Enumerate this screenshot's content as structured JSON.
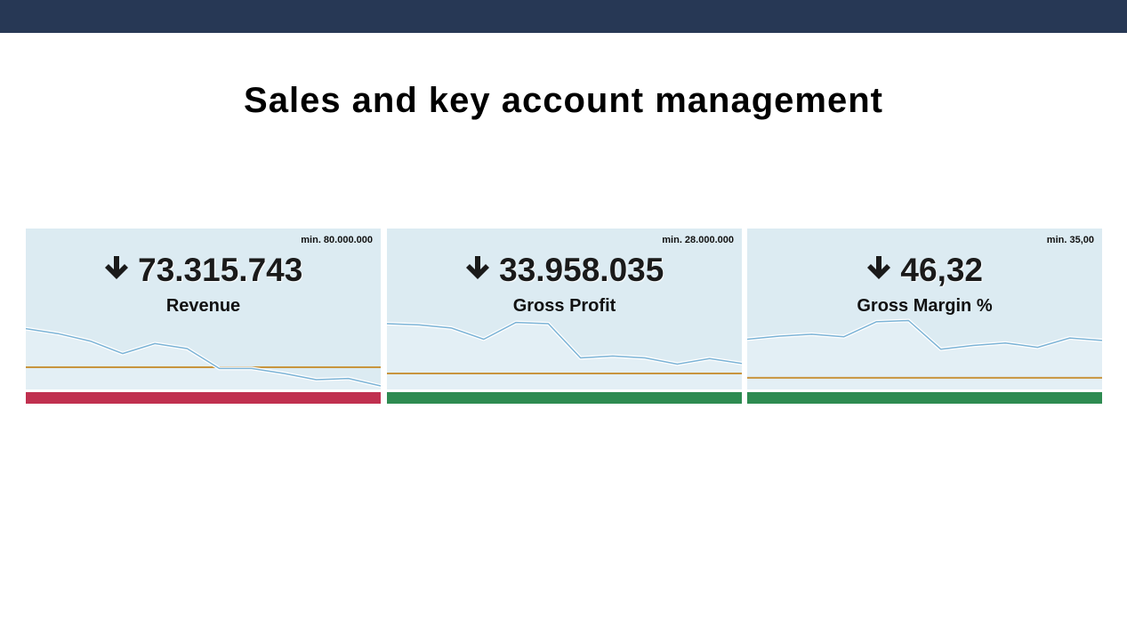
{
  "header": {
    "color": "#273855"
  },
  "page": {
    "title": "Sales and key account management"
  },
  "colors": {
    "card_background": "#dcebf2",
    "sparkline": "#7bb3d6",
    "sparkline_fill": "#e8f2f7",
    "target_line": "#c8953e",
    "status_bad": "#c0304f",
    "status_good": "#2e8b51"
  },
  "cards": [
    {
      "label": "Revenue",
      "value": "73.315.743",
      "trend_icon": "arrow-down-icon",
      "min_label": "min. 80.000.000",
      "status": "bad",
      "status_color": "#c0304f",
      "sparkline": [
        0.82,
        0.74,
        0.62,
        0.42,
        0.58,
        0.5,
        0.18,
        0.18,
        0.1,
        0.0,
        0.02,
        -0.1
      ],
      "target": 0.2
    },
    {
      "label": "Gross Profit",
      "value": "33.958.035",
      "trend_icon": "arrow-down-icon",
      "min_label": "min. 28.000.000",
      "status": "good",
      "status_color": "#2e8b51",
      "sparkline": [
        0.9,
        0.88,
        0.83,
        0.65,
        0.92,
        0.9,
        0.35,
        0.38,
        0.35,
        0.25,
        0.34,
        0.26
      ],
      "target": 0.1
    },
    {
      "label": "Gross Margin %",
      "value": "46,32",
      "trend_icon": "arrow-down-icon",
      "min_label": "min. 35,00",
      "status": "good",
      "status_color": "#2e8b51",
      "sparkline": [
        0.65,
        0.7,
        0.73,
        0.69,
        0.93,
        0.95,
        0.49,
        0.55,
        0.59,
        0.52,
        0.67,
        0.63
      ],
      "target": 0.03
    }
  ]
}
